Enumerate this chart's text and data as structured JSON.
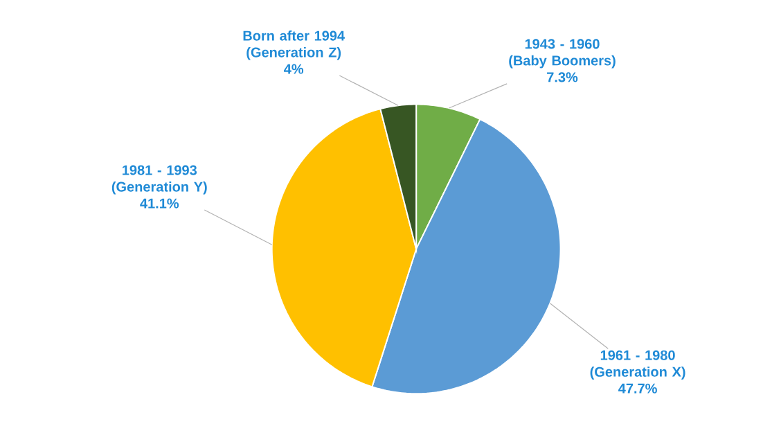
{
  "chart_data": {
    "type": "pie",
    "categories": [
      "1943 - 1960 (Baby Boomers)",
      "1961 - 1980 (Generation X)",
      "1981 - 1993 (Generation Y)",
      "Born after 1994 (Generation Z)"
    ],
    "values": [
      7.3,
      47.7,
      41.1,
      4
    ],
    "value_labels": [
      "7.3%",
      "47.7%",
      "41.1%",
      "4%"
    ],
    "colors": [
      "#70ad47",
      "#5b9bd5",
      "#ffc000",
      "#375623"
    ]
  }
}
